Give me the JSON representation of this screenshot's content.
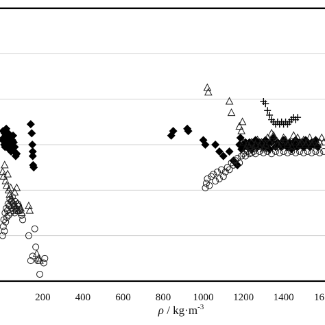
{
  "chart_data": {
    "type": "scatter",
    "xlabel": {
      "symbol": "ρ",
      "sep": " / ",
      "unit": "kg·m",
      "exp": "-3"
    },
    "xlim": [
      -20,
      1620
    ],
    "ylim": [
      0,
      6
    ],
    "x_ticks": [
      200,
      400,
      600,
      800,
      1000,
      1200,
      1400
    ],
    "x_tick_labels": [
      "200",
      "400",
      "600",
      "800",
      "1000",
      "1200",
      "1400"
    ],
    "partial_tick_label": "16",
    "grid": "horizontal",
    "legend": "none",
    "colors": {
      "markers": "#000000",
      "grid": "#d0d0d0",
      "frame": "#000000"
    },
    "series": [
      {
        "marker": "diamond-filled",
        "points": [
          [
            0,
            3.1
          ],
          [
            2,
            3.3
          ],
          [
            5,
            3.15
          ],
          [
            8,
            3.0
          ],
          [
            10,
            3.25
          ],
          [
            12,
            2.95
          ],
          [
            15,
            3.2
          ],
          [
            18,
            3.35
          ],
          [
            20,
            3.05
          ],
          [
            22,
            3.15
          ],
          [
            25,
            3.0
          ],
          [
            28,
            3.25
          ],
          [
            30,
            3.1
          ],
          [
            32,
            2.9
          ],
          [
            35,
            3.2
          ],
          [
            38,
            3.05
          ],
          [
            40,
            3.15
          ],
          [
            42,
            2.85
          ],
          [
            45,
            3.0
          ],
          [
            48,
            3.1
          ],
          [
            50,
            2.95
          ],
          [
            52,
            3.2
          ],
          [
            55,
            3.05
          ],
          [
            58,
            2.85
          ],
          [
            60,
            2.95
          ],
          [
            65,
            2.75
          ],
          [
            70,
            2.8
          ],
          [
            140,
            3.45
          ],
          [
            145,
            3.25
          ],
          [
            148,
            3.0
          ],
          [
            150,
            2.75
          ],
          [
            152,
            2.55
          ],
          [
            155,
            2.5
          ],
          [
            150,
            2.85
          ],
          [
            840,
            3.2
          ],
          [
            850,
            3.3
          ],
          [
            920,
            3.35
          ],
          [
            925,
            3.3
          ],
          [
            1000,
            3.1
          ],
          [
            1010,
            3.0
          ],
          [
            1060,
            3.0
          ],
          [
            1080,
            2.85
          ],
          [
            1100,
            2.75
          ],
          [
            1130,
            2.85
          ],
          [
            1150,
            2.65
          ],
          [
            1170,
            2.55
          ],
          [
            1180,
            3.0
          ],
          [
            1185,
            3.15
          ],
          [
            1190,
            2.9
          ],
          [
            1200,
            2.95
          ],
          [
            1210,
            3.05
          ],
          [
            1220,
            2.95
          ],
          [
            1230,
            3.05
          ],
          [
            1240,
            2.9
          ],
          [
            1250,
            3.0
          ],
          [
            1260,
            3.1
          ],
          [
            1270,
            2.95
          ],
          [
            1280,
            3.05
          ],
          [
            1290,
            3.0
          ],
          [
            1300,
            2.95
          ],
          [
            1310,
            3.1
          ],
          [
            1320,
            3.0
          ],
          [
            1330,
            2.9
          ],
          [
            1340,
            3.05
          ],
          [
            1350,
            3.15
          ],
          [
            1360,
            2.95
          ],
          [
            1370,
            3.05
          ],
          [
            1380,
            3.0
          ],
          [
            1390,
            2.95
          ],
          [
            1400,
            3.1
          ],
          [
            1410,
            3.0
          ],
          [
            1420,
            2.95
          ],
          [
            1430,
            3.05
          ],
          [
            1440,
            2.9
          ],
          [
            1450,
            3.0
          ],
          [
            1460,
            3.1
          ],
          [
            1470,
            2.95
          ],
          [
            1480,
            3.05
          ],
          [
            1490,
            3.0
          ],
          [
            1500,
            2.95
          ],
          [
            1510,
            3.1
          ],
          [
            1520,
            3.0
          ],
          [
            1530,
            2.95
          ],
          [
            1540,
            3.05
          ],
          [
            1550,
            3.0
          ],
          [
            1560,
            3.1
          ],
          [
            1570,
            2.95
          ]
        ]
      },
      {
        "marker": "triangle-open",
        "points": [
          [
            0,
            2.4
          ],
          [
            5,
            2.3
          ],
          [
            10,
            2.55
          ],
          [
            15,
            2.2
          ],
          [
            20,
            2.1
          ],
          [
            25,
            2.35
          ],
          [
            30,
            2.0
          ],
          [
            35,
            1.9
          ],
          [
            40,
            2.05
          ],
          [
            45,
            1.8
          ],
          [
            50,
            1.75
          ],
          [
            55,
            1.65
          ],
          [
            60,
            1.95
          ],
          [
            65,
            1.6
          ],
          [
            70,
            2.05
          ],
          [
            75,
            1.7
          ],
          [
            80,
            1.55
          ],
          [
            90,
            1.6
          ],
          [
            95,
            1.5
          ],
          [
            130,
            1.65
          ],
          [
            135,
            1.55
          ],
          [
            170,
            0.6
          ],
          [
            180,
            0.5
          ],
          [
            185,
            0.45
          ],
          [
            1020,
            4.25
          ],
          [
            1025,
            4.15
          ],
          [
            1130,
            3.95
          ],
          [
            1140,
            3.7
          ],
          [
            1180,
            3.4
          ],
          [
            1190,
            3.3
          ],
          [
            1195,
            3.5
          ],
          [
            1200,
            3.05
          ],
          [
            1210,
            2.9
          ],
          [
            1220,
            3.0
          ],
          [
            1230,
            2.95
          ],
          [
            1240,
            3.05
          ],
          [
            1250,
            2.9
          ],
          [
            1260,
            3.0
          ],
          [
            1270,
            3.1
          ],
          [
            1280,
            2.95
          ],
          [
            1290,
            3.05
          ],
          [
            1300,
            2.9
          ],
          [
            1310,
            3.0
          ],
          [
            1320,
            3.15
          ],
          [
            1330,
            3.05
          ],
          [
            1340,
            3.25
          ],
          [
            1350,
            3.2
          ],
          [
            1360,
            3.1
          ],
          [
            1370,
            3.0
          ],
          [
            1380,
            2.95
          ],
          [
            1390,
            3.05
          ],
          [
            1400,
            3.15
          ],
          [
            1410,
            3.1
          ],
          [
            1420,
            3.0
          ],
          [
            1430,
            3.05
          ],
          [
            1440,
            2.95
          ],
          [
            1450,
            3.2
          ],
          [
            1460,
            3.05
          ],
          [
            1470,
            3.15
          ],
          [
            1480,
            3.0
          ],
          [
            1490,
            3.05
          ],
          [
            1500,
            3.1
          ],
          [
            1510,
            3.0
          ],
          [
            1520,
            3.05
          ],
          [
            1530,
            3.15
          ],
          [
            1540,
            3.0
          ],
          [
            1550,
            3.05
          ],
          [
            1560,
            3.1
          ],
          [
            1570,
            3.0
          ],
          [
            1580,
            3.05
          ],
          [
            1590,
            3.15
          ],
          [
            1600,
            3.05
          ]
        ]
      },
      {
        "marker": "circle-open",
        "points": [
          [
            0,
            1.0
          ],
          [
            3,
            1.2
          ],
          [
            6,
            1.35
          ],
          [
            9,
            1.1
          ],
          [
            12,
            1.5
          ],
          [
            15,
            1.3
          ],
          [
            18,
            1.6
          ],
          [
            21,
            1.4
          ],
          [
            24,
            1.55
          ],
          [
            27,
            1.7
          ],
          [
            30,
            1.45
          ],
          [
            33,
            1.65
          ],
          [
            36,
            1.8
          ],
          [
            39,
            1.5
          ],
          [
            42,
            1.75
          ],
          [
            45,
            1.6
          ],
          [
            48,
            1.85
          ],
          [
            51,
            1.55
          ],
          [
            54,
            1.7
          ],
          [
            57,
            1.65
          ],
          [
            60,
            1.5
          ],
          [
            63,
            1.75
          ],
          [
            66,
            1.6
          ],
          [
            70,
            1.55
          ],
          [
            75,
            1.7
          ],
          [
            80,
            1.65
          ],
          [
            85,
            1.55
          ],
          [
            95,
            1.45
          ],
          [
            100,
            1.35
          ],
          [
            130,
            1.0
          ],
          [
            140,
            0.45
          ],
          [
            150,
            0.55
          ],
          [
            160,
            1.15
          ],
          [
            165,
            0.75
          ],
          [
            175,
            0.45
          ],
          [
            185,
            0.15
          ],
          [
            205,
            0.4
          ],
          [
            210,
            0.5
          ],
          [
            1010,
            2.05
          ],
          [
            1015,
            2.15
          ],
          [
            1020,
            2.25
          ],
          [
            1030,
            2.1
          ],
          [
            1040,
            2.3
          ],
          [
            1050,
            2.35
          ],
          [
            1060,
            2.2
          ],
          [
            1070,
            2.4
          ],
          [
            1080,
            2.25
          ],
          [
            1090,
            2.45
          ],
          [
            1100,
            2.3
          ],
          [
            1110,
            2.4
          ],
          [
            1120,
            2.5
          ],
          [
            1130,
            2.45
          ],
          [
            1140,
            2.6
          ],
          [
            1150,
            2.55
          ],
          [
            1160,
            2.65
          ],
          [
            1170,
            2.7
          ],
          [
            1180,
            2.6
          ],
          [
            1190,
            2.75
          ],
          [
            1200,
            2.8
          ],
          [
            1210,
            2.75
          ],
          [
            1220,
            2.85
          ],
          [
            1230,
            2.8
          ],
          [
            1240,
            2.82
          ],
          [
            1250,
            2.85
          ],
          [
            1260,
            2.8
          ],
          [
            1280,
            2.85
          ],
          [
            1300,
            2.82
          ],
          [
            1320,
            2.85
          ],
          [
            1340,
            2.8
          ],
          [
            1360,
            2.85
          ],
          [
            1380,
            2.82
          ],
          [
            1400,
            2.85
          ],
          [
            1420,
            2.82
          ],
          [
            1440,
            2.85
          ],
          [
            1460,
            2.82
          ],
          [
            1480,
            2.85
          ],
          [
            1500,
            2.82
          ],
          [
            1520,
            2.85
          ],
          [
            1540,
            2.82
          ],
          [
            1560,
            2.85
          ],
          [
            1580,
            2.82
          ],
          [
            1600,
            2.85
          ]
        ]
      },
      {
        "marker": "plus",
        "points": [
          [
            1300,
            3.95
          ],
          [
            1310,
            3.9
          ],
          [
            1320,
            3.75
          ],
          [
            1330,
            3.65
          ],
          [
            1340,
            3.55
          ],
          [
            1350,
            3.5
          ],
          [
            1360,
            3.45
          ],
          [
            1370,
            3.5
          ],
          [
            1380,
            3.45
          ],
          [
            1390,
            3.5
          ],
          [
            1400,
            3.45
          ],
          [
            1410,
            3.5
          ],
          [
            1420,
            3.45
          ],
          [
            1430,
            3.5
          ],
          [
            1440,
            3.55
          ],
          [
            1450,
            3.6
          ],
          [
            1460,
            3.55
          ],
          [
            1470,
            3.6
          ]
        ]
      }
    ]
  }
}
